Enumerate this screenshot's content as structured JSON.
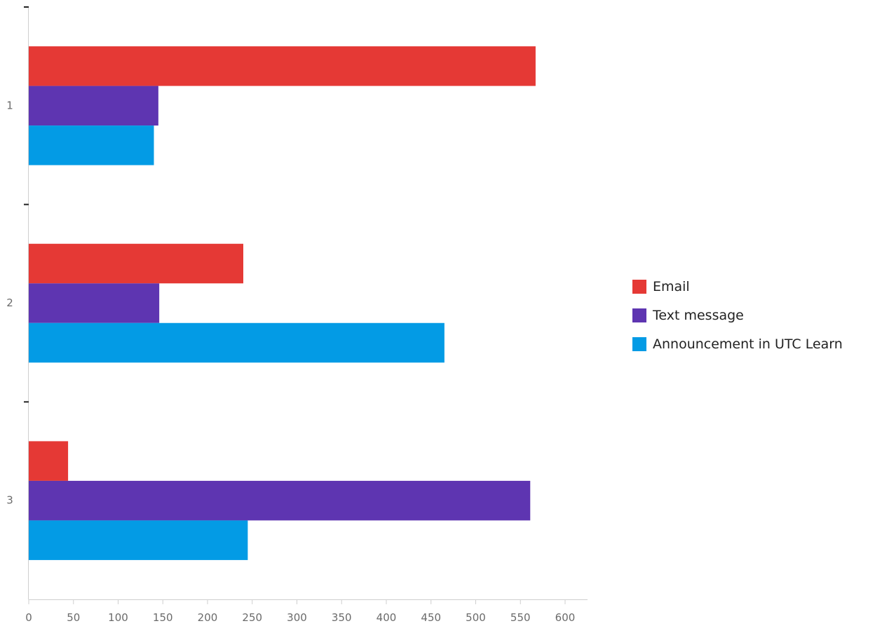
{
  "chart_data": {
    "type": "bar",
    "orientation": "horizontal",
    "categories": [
      "1",
      "2",
      "3"
    ],
    "series": [
      {
        "name": "Email",
        "color": "#e53935",
        "values": [
          567,
          240,
          44
        ]
      },
      {
        "name": "Text message",
        "color": "#5e35b1",
        "values": [
          145,
          146,
          561
        ]
      },
      {
        "name": "Announcement in UTC Learn",
        "color": "#039be5",
        "values": [
          140,
          465,
          245
        ]
      }
    ],
    "x_ticks": [
      0,
      50,
      100,
      150,
      200,
      250,
      300,
      350,
      400,
      450,
      500,
      550,
      600
    ],
    "xlim": [
      0,
      625
    ],
    "title": "",
    "xlabel": "",
    "ylabel": "",
    "grid": false,
    "legend_position": "right"
  }
}
